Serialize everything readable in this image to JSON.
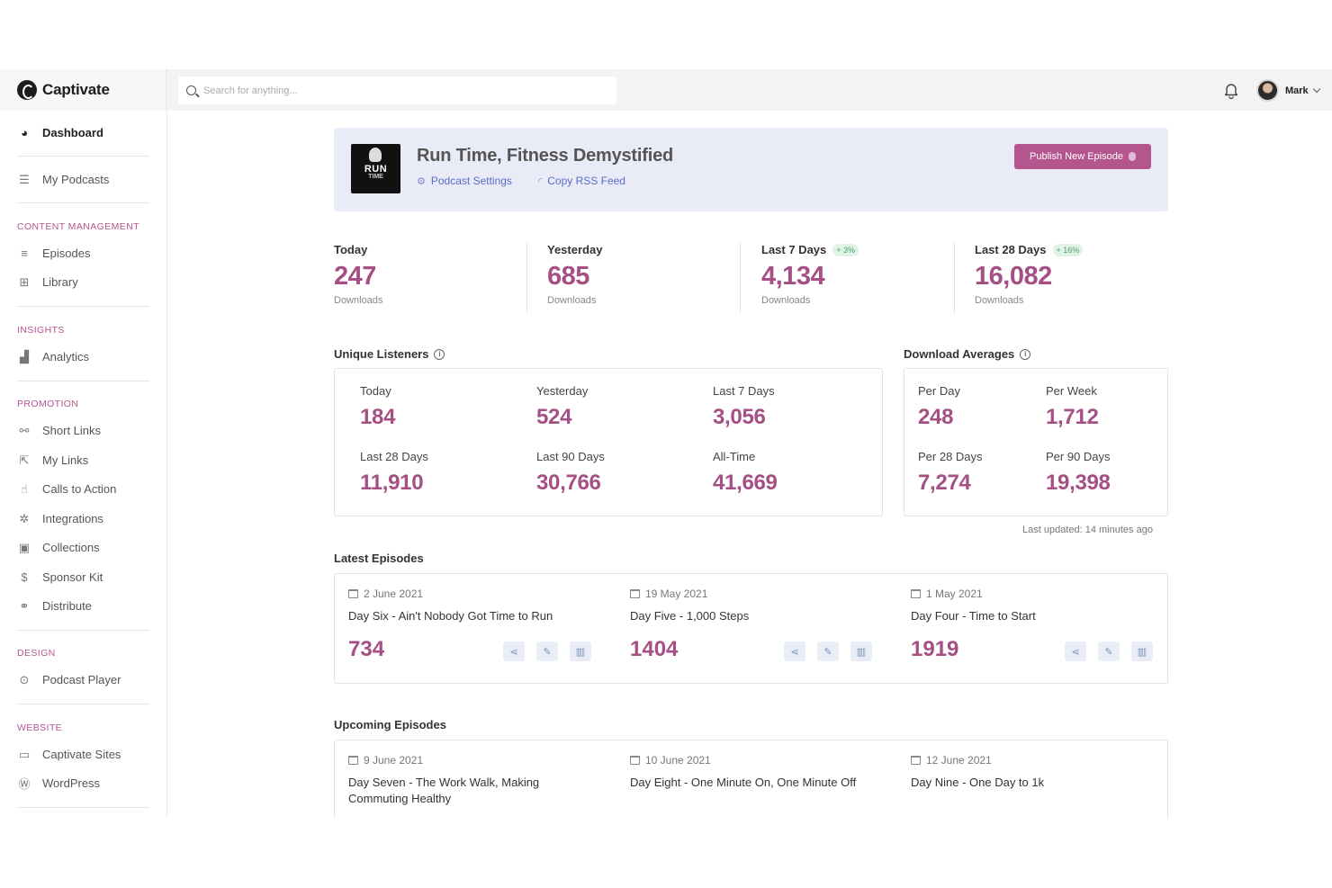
{
  "app": {
    "name": "Captivate"
  },
  "search": {
    "placeholder": "Search for anything..."
  },
  "user": {
    "name": "Mark"
  },
  "sidebar": {
    "dashboard": "Dashboard",
    "my_podcasts": "My Podcasts",
    "sections": {
      "content": "CONTENT MANAGEMENT",
      "insights": "INSIGHTS",
      "promotion": "PROMOTION",
      "design": "DESIGN",
      "website": "WEBSITE"
    },
    "items": {
      "episodes": "Episodes",
      "library": "Library",
      "analytics": "Analytics",
      "short_links": "Short Links",
      "my_links": "My Links",
      "calls_to_action": "Calls to Action",
      "integrations": "Integrations",
      "collections": "Collections",
      "sponsor_kit": "Sponsor Kit",
      "distribute": "Distribute",
      "podcast_player": "Podcast Player",
      "captivate_sites": "Captivate Sites",
      "wordpress": "WordPress"
    }
  },
  "banner": {
    "title": "Run Time, Fitness Demystified",
    "cover_text": "RUN",
    "cover_sub": "TIME",
    "podcast_settings": "Podcast Settings",
    "copy_rss": "Copy RSS Feed",
    "publish": "Publish New Episode"
  },
  "downloads": [
    {
      "label": "Today",
      "value": "247",
      "sub": "Downloads",
      "badge": ""
    },
    {
      "label": "Yesterday",
      "value": "685",
      "sub": "Downloads",
      "badge": ""
    },
    {
      "label": "Last 7 Days",
      "value": "4,134",
      "sub": "Downloads",
      "badge": "+ 3%"
    },
    {
      "label": "Last 28 Days",
      "value": "16,082",
      "sub": "Downloads",
      "badge": "+ 16%"
    }
  ],
  "unique_listeners": {
    "title": "Unique Listeners",
    "metrics": [
      {
        "label": "Today",
        "value": "184"
      },
      {
        "label": "Yesterday",
        "value": "524"
      },
      {
        "label": "Last 7 Days",
        "value": "3,056"
      },
      {
        "label": "Last 28 Days",
        "value": "11,910"
      },
      {
        "label": "Last 90 Days",
        "value": "30,766"
      },
      {
        "label": "All-Time",
        "value": "41,669"
      }
    ]
  },
  "download_averages": {
    "title": "Download Averages",
    "metrics": [
      {
        "label": "Per Day",
        "value": "248"
      },
      {
        "label": "Per Week",
        "value": "1,712"
      },
      {
        "label": "Per 28 Days",
        "value": "7,274"
      },
      {
        "label": "Per 90 Days",
        "value": "19,398"
      }
    ]
  },
  "last_updated": "Last updated: 14 minutes ago",
  "latest_episodes": {
    "title": "Latest Episodes",
    "items": [
      {
        "date": "2 June 2021",
        "title": "Day Six - Ain't Nobody Got Time to Run",
        "count": "734"
      },
      {
        "date": "19 May 2021",
        "title": "Day Five - 1,000 Steps",
        "count": "1404"
      },
      {
        "date": "1 May 2021",
        "title": "Day Four - Time to Start",
        "count": "1919"
      }
    ]
  },
  "upcoming_episodes": {
    "title": "Upcoming Episodes",
    "items": [
      {
        "date": "9 June 2021",
        "title": "Day Seven - The Work Walk, Making Commuting Healthy"
      },
      {
        "date": "10 June 2021",
        "title": "Day Eight - One Minute On, One Minute Off"
      },
      {
        "date": "12 June 2021",
        "title": "Day Nine - One Day to 1k"
      }
    ]
  },
  "colors": {
    "accent": "#b5558e",
    "value": "#a54f85",
    "link": "#5b6bc4",
    "banner_bg": "#e9ecf7"
  }
}
